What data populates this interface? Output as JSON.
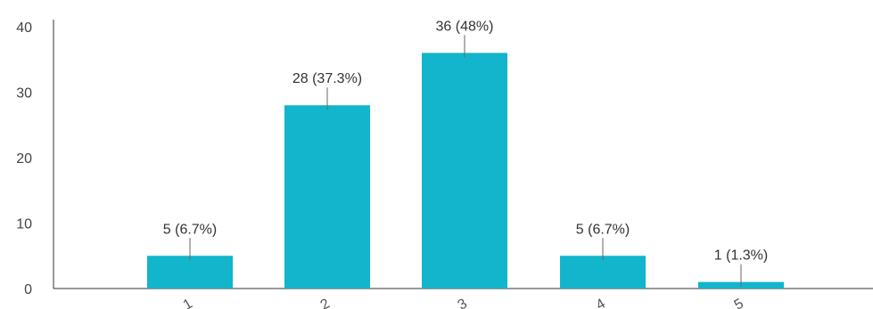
{
  "chart_data": {
    "type": "bar",
    "categories": [
      "1",
      "2",
      "3",
      "4",
      "5"
    ],
    "values": [
      5,
      28,
      36,
      5,
      1
    ],
    "data_labels": [
      "5 (6.7%)",
      "28 (37.3%)",
      "36 (48%)",
      "5 (6.7%)",
      "1 (1.3%)"
    ],
    "ylim": [
      0,
      40
    ],
    "yticks": [
      0,
      10,
      20,
      30,
      40
    ],
    "grid": false,
    "bar_color": "#12b5cb",
    "title": "",
    "xlabel": "",
    "ylabel": ""
  }
}
